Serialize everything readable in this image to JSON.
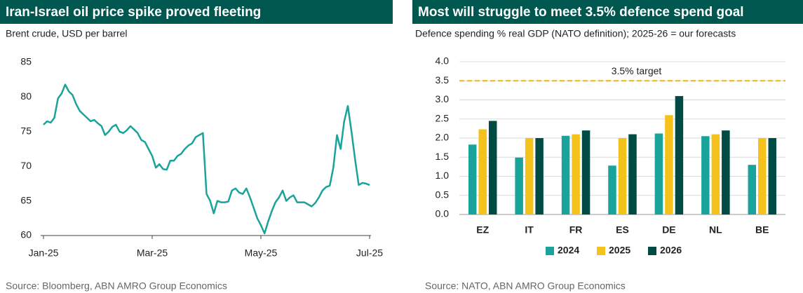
{
  "chart_data": [
    {
      "type": "line",
      "title": "Iran-Israel oil price spike proved fleeting",
      "subtitle": "Brent crude, USD per barrel",
      "source": "Source: Bloomberg, ABN AMRO Group Economics",
      "color": "#1aa39a",
      "categories": [
        "Jan-25",
        null,
        null,
        null,
        null,
        null,
        null,
        null,
        null,
        null,
        null,
        null,
        null,
        null,
        null,
        null,
        null,
        null,
        null,
        null,
        null,
        null,
        null,
        null,
        null,
        null,
        null,
        null,
        null,
        null,
        "Mar-25",
        null,
        null,
        null,
        null,
        null,
        null,
        null,
        null,
        null,
        null,
        null,
        null,
        null,
        null,
        null,
        null,
        null,
        null,
        null,
        null,
        null,
        null,
        null,
        null,
        null,
        null,
        null,
        null,
        null,
        "May-25",
        null,
        null,
        null,
        null,
        null,
        null,
        null,
        null,
        null,
        null,
        null,
        null,
        null,
        null,
        null,
        null,
        null,
        null,
        null,
        null,
        null,
        null,
        null,
        null,
        null,
        null,
        null,
        null,
        null,
        "Jul-25"
      ],
      "values": [
        76,
        76.5,
        76.3,
        77,
        79.8,
        80.5,
        81.8,
        80.8,
        80.3,
        79,
        78,
        77.5,
        77,
        76.5,
        76.7,
        76.2,
        75.8,
        74.5,
        75,
        75.7,
        76,
        75,
        74.8,
        75.2,
        75.8,
        75.3,
        74.8,
        73.8,
        73.5,
        72.5,
        71.5,
        69.8,
        70.3,
        69.6,
        69.5,
        70.8,
        70.8,
        71.5,
        71.8,
        72.5,
        73,
        73.3,
        74.2,
        74.5,
        74.8,
        66,
        65,
        63.2,
        65,
        64.8,
        64.8,
        64.9,
        66.5,
        66.8,
        66.2,
        66,
        66.8,
        65.5,
        64,
        62.5,
        61.5,
        60.3,
        62,
        63.5,
        64.8,
        65.5,
        66.5,
        65,
        65.5,
        65.8,
        64.8,
        64.8,
        64.8,
        64.5,
        64.2,
        64.7,
        65.5,
        66.5,
        67,
        67.2,
        69.8,
        74.5,
        72.5,
        76.5,
        78.7,
        75,
        71,
        67.3,
        67.6,
        67.5,
        67.3
      ],
      "ylim": [
        60,
        85
      ],
      "yticks": [
        60,
        65,
        70,
        75,
        80,
        85
      ],
      "grid": false
    },
    {
      "type": "bar",
      "title": "Most will struggle to meet 3.5% defence spend goal",
      "subtitle": "Defence spending % real GDP (NATO definition); 2025-26 = our forecasts",
      "source": "Source: NATO, ABN AMRO Group Economics",
      "categories": [
        "EZ",
        "IT",
        "FR",
        "ES",
        "DE",
        "NL",
        "BE"
      ],
      "series": [
        {
          "name": "2024",
          "color": "#1aa39a",
          "values": [
            1.83,
            1.49,
            2.06,
            1.28,
            2.12,
            2.05,
            1.3
          ]
        },
        {
          "name": "2025",
          "color": "#f5c21b",
          "values": [
            2.23,
            2.0,
            2.1,
            2.0,
            2.6,
            2.1,
            2.0
          ]
        },
        {
          "name": "2026",
          "color": "#004c45",
          "values": [
            2.45,
            2.0,
            2.2,
            2.1,
            3.1,
            2.2,
            2.0
          ]
        }
      ],
      "target": {
        "value": 3.5,
        "label": "3.5% target",
        "color": "#f5b800"
      },
      "ylim": [
        0,
        4
      ],
      "yticks": [
        {
          "value": 0,
          "label": "0.0"
        },
        {
          "value": 0.5,
          "label": "0.5"
        },
        {
          "value": 1,
          "label": "1.0"
        },
        {
          "value": 1.5,
          "label": "1.5"
        },
        {
          "value": 2,
          "label": "2.0"
        },
        {
          "value": 2.5,
          "label": "2.5"
        },
        {
          "value": 3,
          "label": "3.0"
        },
        {
          "value": 3.5,
          "label": "3.5"
        },
        {
          "value": 4,
          "label": "4.0"
        }
      ],
      "grid": true
    }
  ]
}
